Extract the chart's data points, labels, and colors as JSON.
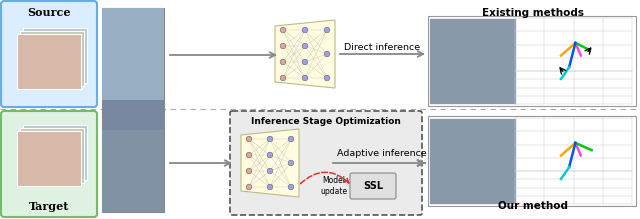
{
  "bg_color": "#ffffff",
  "source_label": "Source",
  "target_label": "Target",
  "existing_methods_label": "Existing methods",
  "our_method_label": "Our method",
  "direct_inference_label": "Direct inference",
  "adaptive_inference_label": "Adaptive inference",
  "iso_label": "Inference Stage Optimization",
  "model_update_label": "Model\nupdate",
  "ssl_label": "SSL",
  "source_box_facecolor": "#dbeeff",
  "source_box_edgecolor": "#6aade4",
  "target_box_facecolor": "#dff2e1",
  "target_box_edgecolor": "#72bb6e",
  "iso_box_facecolor": "#ebebeb",
  "iso_box_edgecolor": "#555555",
  "dashed_line_color": "#aaaaaa",
  "arrow_color": "#888888",
  "red_arrow_color": "#e03030",
  "nn_bg_color": "#fffce0",
  "nn_border_color": "#bbbb88",
  "node_color_left": "#e8a0a0",
  "node_color_right": "#a0a0e8",
  "grid_color": "#cccccc",
  "photo_color": "#8899aa"
}
